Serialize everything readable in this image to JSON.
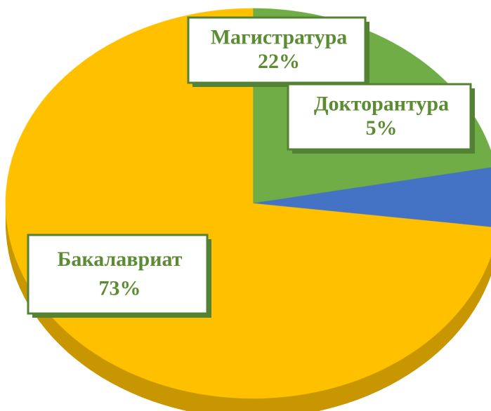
{
  "chart_data": {
    "type": "pie",
    "categories": [
      "Магистратура",
      "Докторантура",
      "Бакалавриат"
    ],
    "values": [
      22,
      5,
      73
    ],
    "value_labels": [
      "22%",
      "5%",
      "73%"
    ],
    "colors": [
      "#70ad47",
      "#4472c4",
      "#ffc000"
    ]
  }
}
